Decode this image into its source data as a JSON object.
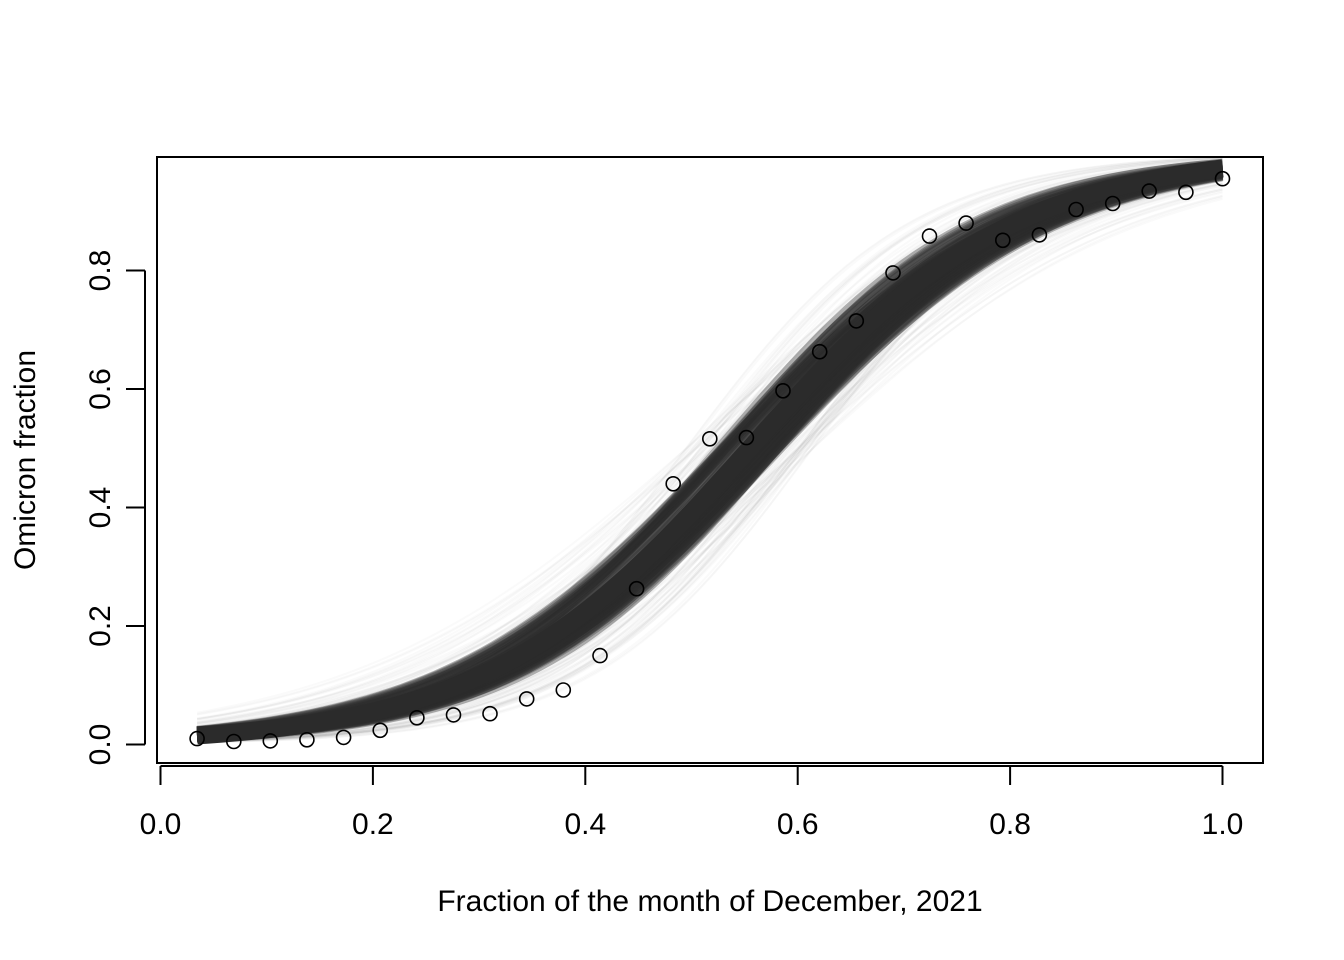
{
  "chart_data": {
    "type": "scatter",
    "title": "",
    "xlabel": "Fraction of the month of December, 2021",
    "ylabel": "Omicron fraction",
    "xlim": [
      0.0,
      1.0
    ],
    "ylim": [
      0.0,
      1.0
    ],
    "x_ticks": [
      "0.0",
      "0.2",
      "0.4",
      "0.6",
      "0.8",
      "1.0"
    ],
    "y_ticks": [
      "0.0",
      "0.2",
      "0.4",
      "0.6",
      "0.8"
    ],
    "grid": false,
    "legend": "none",
    "series": [
      {
        "kind": "points",
        "marker": "open-circle",
        "color": "#000000",
        "x": [
          0.0345,
          0.069,
          0.1034,
          0.1379,
          0.1724,
          0.2069,
          0.2414,
          0.2759,
          0.3103,
          0.3448,
          0.3793,
          0.4138,
          0.4483,
          0.4828,
          0.5172,
          0.5517,
          0.5862,
          0.6207,
          0.6552,
          0.6897,
          0.7241,
          0.7586,
          0.7931,
          0.8276,
          0.8621,
          0.8966,
          0.931,
          0.9655,
          1.0
        ],
        "y": [
          0.01,
          0.005,
          0.006,
          0.008,
          0.012,
          0.024,
          0.045,
          0.05,
          0.052,
          0.077,
          0.092,
          0.15,
          0.263,
          0.44,
          0.516,
          0.518,
          0.597,
          0.663,
          0.715,
          0.796,
          0.858,
          0.88,
          0.851,
          0.86,
          0.903,
          0.913,
          0.934,
          0.932,
          0.955
        ]
      },
      {
        "kind": "posterior-curve-band",
        "color": "#2b2b2b",
        "model": "logistic",
        "x_range": [
          0.0345,
          1.0
        ],
        "center_midpoint": 0.555,
        "center_slope": 8.0,
        "midpoint_range": [
          0.525,
          0.585
        ],
        "slope_range": [
          7.4,
          8.6
        ]
      }
    ]
  }
}
